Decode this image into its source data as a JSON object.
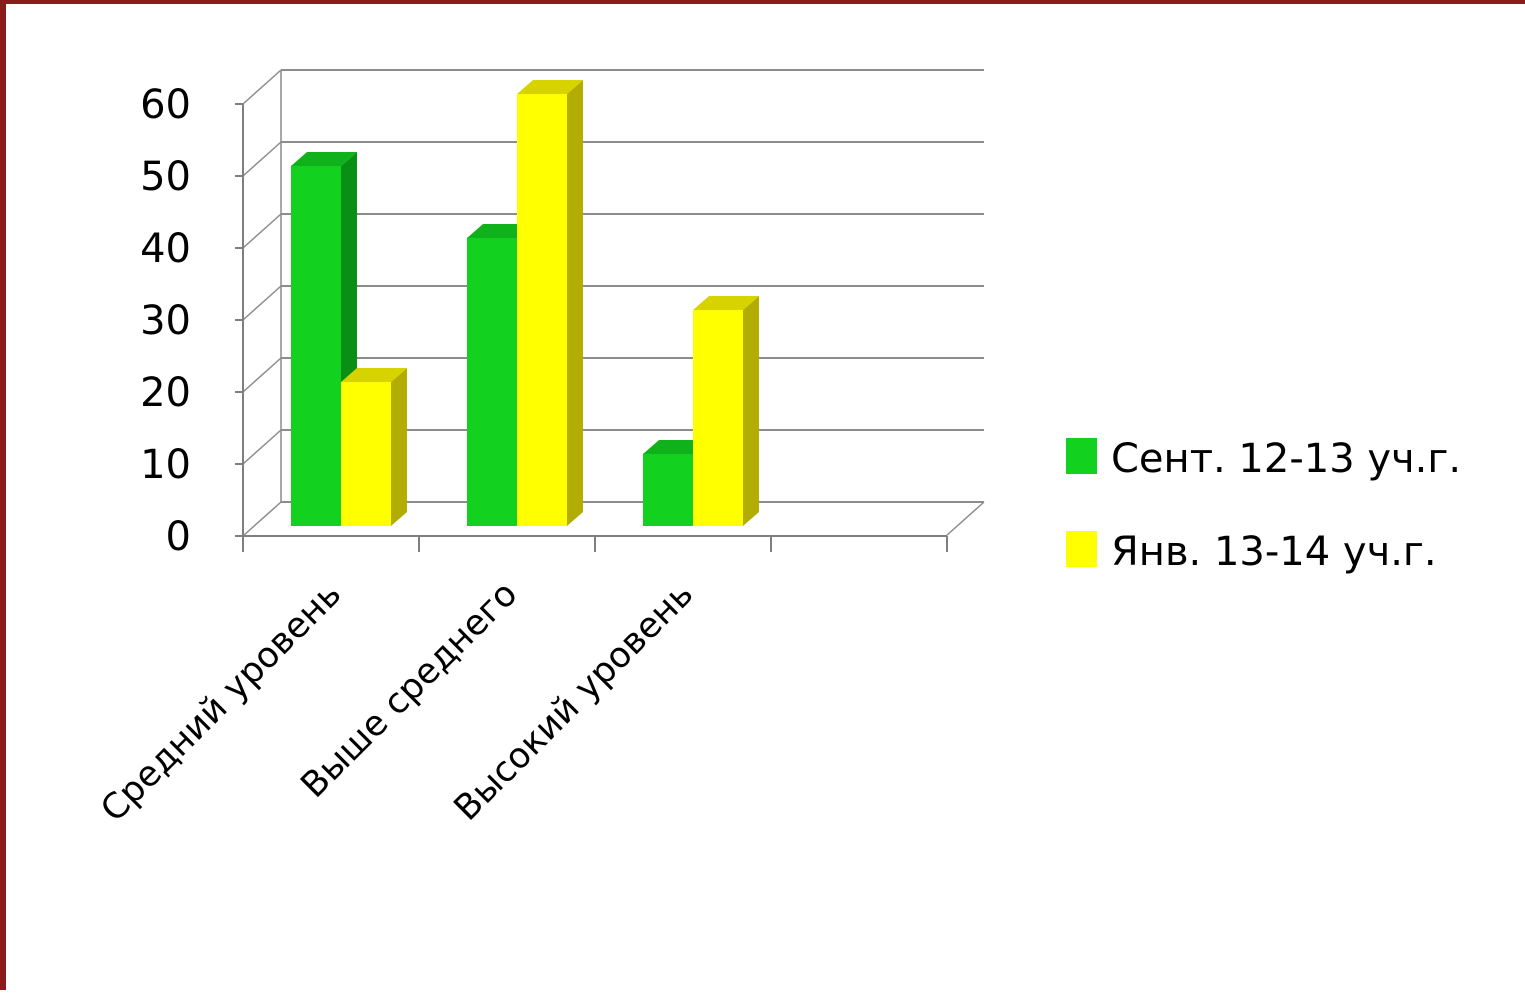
{
  "chart_data": {
    "type": "bar",
    "categories": [
      "Средний уровень",
      "Выше среднего",
      "Высокий уровень"
    ],
    "series": [
      {
        "name": "Сент. 12-13 уч.г.",
        "values": [
          50,
          40,
          10
        ],
        "color": "#12d11f",
        "side_color": "#0a8f15",
        "top_color": "#0fb21a"
      },
      {
        "name": "Янв. 13-14 уч.г.",
        "values": [
          20,
          60,
          30
        ],
        "color": "#ffff00",
        "side_color": "#b2ad00",
        "top_color": "#d7d300"
      }
    ],
    "y_ticks": [
      "0",
      "10",
      "20",
      "30",
      "40",
      "50",
      "60"
    ],
    "ylim": [
      0,
      60
    ],
    "grid": true,
    "legend_position": "right",
    "three_d": true
  }
}
